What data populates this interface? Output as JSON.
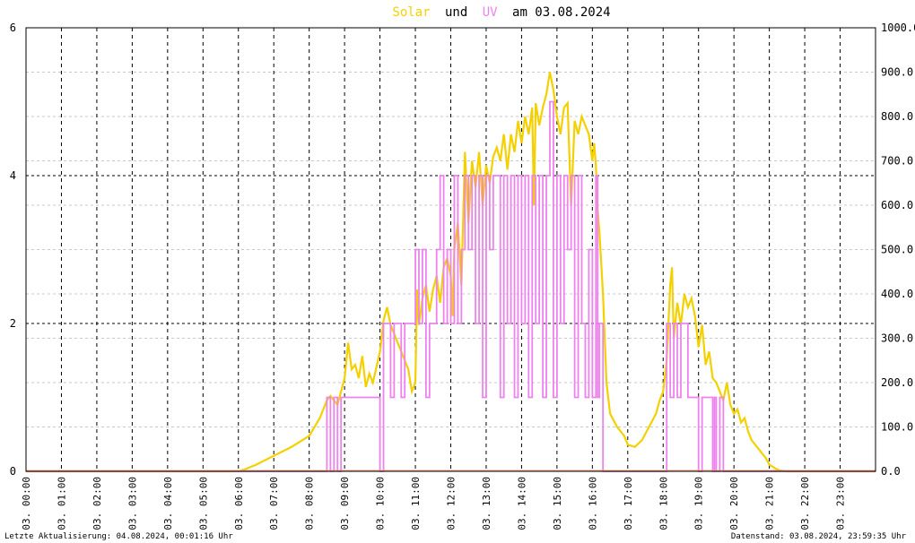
{
  "chart_data": {
    "type": "line",
    "title": {
      "part1": "Solar",
      "part2": "und",
      "part3": "UV",
      "part4": "am 03.08.2024"
    },
    "colors": {
      "solar": "#f5d000",
      "uv": "#ee82ee",
      "baseline": "#f4a080",
      "grid_major": "#000000",
      "grid_minor": "#c8c8c8"
    },
    "left_axis": {
      "min": 0,
      "max": 6,
      "ticks": [
        "0",
        "2",
        "4",
        "6"
      ]
    },
    "right_axis": {
      "min": 0,
      "max": 1000,
      "ticks": [
        "0.0",
        "100.0",
        "200.0",
        "300.0",
        "400.0",
        "500.0",
        "600.0",
        "700.0",
        "800.0",
        "900.0",
        "1000.0"
      ]
    },
    "x_axis": {
      "min_hour": 0,
      "max_hour": 24,
      "ticks": [
        "03. 00:00",
        "03. 01:00",
        "03. 02:00",
        "03. 03:00",
        "03. 04:00",
        "03. 05:00",
        "03. 06:00",
        "03. 07:00",
        "03. 08:00",
        "03. 09:00",
        "03. 10:00",
        "03. 11:00",
        "03. 12:00",
        "03. 13:00",
        "03. 14:00",
        "03. 15:00",
        "03. 16:00",
        "03. 17:00",
        "03. 18:00",
        "03. 19:00",
        "03. 20:00",
        "03. 21:00",
        "03. 22:00",
        "03. 23:00"
      ]
    },
    "series": [
      {
        "key": "solar",
        "axis": "right",
        "points": [
          [
            0,
            0
          ],
          [
            6.0,
            0
          ],
          [
            6.2,
            5
          ],
          [
            6.5,
            15
          ],
          [
            7.0,
            35
          ],
          [
            7.5,
            55
          ],
          [
            8.0,
            80
          ],
          [
            8.3,
            120
          ],
          [
            8.5,
            160
          ],
          [
            8.6,
            170
          ],
          [
            8.8,
            150
          ],
          [
            9.0,
            210
          ],
          [
            9.1,
            290
          ],
          [
            9.2,
            230
          ],
          [
            9.3,
            240
          ],
          [
            9.4,
            210
          ],
          [
            9.5,
            260
          ],
          [
            9.6,
            190
          ],
          [
            9.7,
            220
          ],
          [
            9.8,
            200
          ],
          [
            10.0,
            270
          ],
          [
            10.1,
            340
          ],
          [
            10.2,
            370
          ],
          [
            10.3,
            330
          ],
          [
            10.5,
            290
          ],
          [
            10.7,
            250
          ],
          [
            10.8,
            230
          ],
          [
            10.9,
            180
          ],
          [
            11.0,
            200
          ],
          [
            11.05,
            410
          ],
          [
            11.1,
            330
          ],
          [
            11.2,
            390
          ],
          [
            11.3,
            420
          ],
          [
            11.4,
            360
          ],
          [
            11.5,
            410
          ],
          [
            11.6,
            440
          ],
          [
            11.7,
            380
          ],
          [
            11.8,
            460
          ],
          [
            11.9,
            480
          ],
          [
            12.0,
            440
          ],
          [
            12.05,
            350
          ],
          [
            12.1,
            500
          ],
          [
            12.2,
            560
          ],
          [
            12.3,
            420
          ],
          [
            12.4,
            720
          ],
          [
            12.5,
            560
          ],
          [
            12.6,
            700
          ],
          [
            12.7,
            640
          ],
          [
            12.8,
            720
          ],
          [
            12.9,
            600
          ],
          [
            13.0,
            690
          ],
          [
            13.1,
            650
          ],
          [
            13.2,
            710
          ],
          [
            13.3,
            730
          ],
          [
            13.4,
            700
          ],
          [
            13.5,
            760
          ],
          [
            13.6,
            680
          ],
          [
            13.7,
            760
          ],
          [
            13.8,
            720
          ],
          [
            13.9,
            790
          ],
          [
            14.0,
            740
          ],
          [
            14.1,
            800
          ],
          [
            14.2,
            760
          ],
          [
            14.3,
            820
          ],
          [
            14.35,
            600
          ],
          [
            14.4,
            830
          ],
          [
            14.5,
            780
          ],
          [
            14.6,
            820
          ],
          [
            14.7,
            850
          ],
          [
            14.8,
            900
          ],
          [
            14.9,
            860
          ],
          [
            15.0,
            800
          ],
          [
            15.1,
            760
          ],
          [
            15.2,
            820
          ],
          [
            15.3,
            830
          ],
          [
            15.4,
            600
          ],
          [
            15.5,
            790
          ],
          [
            15.6,
            760
          ],
          [
            15.7,
            800
          ],
          [
            15.8,
            780
          ],
          [
            15.9,
            760
          ],
          [
            16.0,
            700
          ],
          [
            16.05,
            740
          ],
          [
            16.1,
            690
          ],
          [
            16.15,
            590
          ],
          [
            16.2,
            540
          ],
          [
            16.3,
            400
          ],
          [
            16.4,
            200
          ],
          [
            16.5,
            130
          ],
          [
            16.7,
            100
          ],
          [
            16.9,
            80
          ],
          [
            17.0,
            60
          ],
          [
            17.2,
            55
          ],
          [
            17.4,
            70
          ],
          [
            17.6,
            100
          ],
          [
            17.8,
            130
          ],
          [
            17.9,
            160
          ],
          [
            18.0,
            180
          ],
          [
            18.1,
            250
          ],
          [
            18.2,
            420
          ],
          [
            18.25,
            460
          ],
          [
            18.3,
            300
          ],
          [
            18.4,
            380
          ],
          [
            18.5,
            330
          ],
          [
            18.6,
            400
          ],
          [
            18.7,
            370
          ],
          [
            18.8,
            390
          ],
          [
            18.9,
            350
          ],
          [
            19.0,
            280
          ],
          [
            19.1,
            330
          ],
          [
            19.2,
            240
          ],
          [
            19.3,
            270
          ],
          [
            19.4,
            210
          ],
          [
            19.5,
            200
          ],
          [
            19.6,
            180
          ],
          [
            19.7,
            160
          ],
          [
            19.8,
            200
          ],
          [
            19.9,
            150
          ],
          [
            20.0,
            130
          ],
          [
            20.1,
            140
          ],
          [
            20.2,
            110
          ],
          [
            20.3,
            120
          ],
          [
            20.4,
            90
          ],
          [
            20.5,
            70
          ],
          [
            20.7,
            50
          ],
          [
            20.9,
            30
          ],
          [
            21.0,
            15
          ],
          [
            21.2,
            5
          ],
          [
            21.3,
            2
          ],
          [
            21.5,
            0
          ],
          [
            24,
            0
          ]
        ]
      },
      {
        "key": "uv",
        "axis": "left",
        "points": [
          [
            0,
            0
          ],
          [
            8.5,
            0
          ],
          [
            8.5,
            1
          ],
          [
            8.6,
            1
          ],
          [
            8.6,
            0
          ],
          [
            8.7,
            0
          ],
          [
            8.7,
            1
          ],
          [
            8.8,
            1
          ],
          [
            8.8,
            0
          ],
          [
            8.9,
            0
          ],
          [
            8.9,
            1
          ],
          [
            10.0,
            1
          ],
          [
            10.0,
            0
          ],
          [
            10.1,
            0
          ],
          [
            10.1,
            2
          ],
          [
            10.3,
            2
          ],
          [
            10.3,
            1
          ],
          [
            10.4,
            1
          ],
          [
            10.4,
            2
          ],
          [
            10.6,
            2
          ],
          [
            10.6,
            1
          ],
          [
            10.7,
            1
          ],
          [
            10.7,
            2
          ],
          [
            11.0,
            2
          ],
          [
            11.0,
            3
          ],
          [
            11.1,
            3
          ],
          [
            11.1,
            2
          ],
          [
            11.2,
            2
          ],
          [
            11.2,
            3
          ],
          [
            11.3,
            3
          ],
          [
            11.3,
            1
          ],
          [
            11.4,
            1
          ],
          [
            11.4,
            2
          ],
          [
            11.6,
            2
          ],
          [
            11.6,
            3
          ],
          [
            11.7,
            3
          ],
          [
            11.7,
            4
          ],
          [
            11.8,
            4
          ],
          [
            11.8,
            2
          ],
          [
            11.9,
            2
          ],
          [
            11.9,
            3
          ],
          [
            12.0,
            3
          ],
          [
            12.0,
            2
          ],
          [
            12.1,
            2
          ],
          [
            12.1,
            4
          ],
          [
            12.2,
            4
          ],
          [
            12.2,
            2
          ],
          [
            12.3,
            2
          ],
          [
            12.3,
            3
          ],
          [
            12.4,
            3
          ],
          [
            12.4,
            4
          ],
          [
            12.5,
            4
          ],
          [
            12.5,
            3
          ],
          [
            12.6,
            3
          ],
          [
            12.6,
            4
          ],
          [
            12.7,
            4
          ],
          [
            12.7,
            2
          ],
          [
            12.8,
            2
          ],
          [
            12.8,
            4
          ],
          [
            12.9,
            4
          ],
          [
            12.9,
            1
          ],
          [
            13.0,
            1
          ],
          [
            13.0,
            4
          ],
          [
            13.1,
            4
          ],
          [
            13.1,
            3
          ],
          [
            13.2,
            3
          ],
          [
            13.2,
            4
          ],
          [
            13.4,
            4
          ],
          [
            13.4,
            1
          ],
          [
            13.5,
            1
          ],
          [
            13.5,
            4
          ],
          [
            13.6,
            4
          ],
          [
            13.6,
            2
          ],
          [
            13.7,
            2
          ],
          [
            13.7,
            4
          ],
          [
            13.8,
            4
          ],
          [
            13.8,
            1
          ],
          [
            13.9,
            1
          ],
          [
            13.9,
            4
          ],
          [
            14.0,
            4
          ],
          [
            14.0,
            2
          ],
          [
            14.1,
            2
          ],
          [
            14.1,
            4
          ],
          [
            14.2,
            4
          ],
          [
            14.2,
            1
          ],
          [
            14.3,
            1
          ],
          [
            14.3,
            4
          ],
          [
            14.4,
            4
          ],
          [
            14.4,
            2
          ],
          [
            14.5,
            2
          ],
          [
            14.5,
            4
          ],
          [
            14.6,
            4
          ],
          [
            14.6,
            1
          ],
          [
            14.7,
            1
          ],
          [
            14.7,
            4
          ],
          [
            14.8,
            4
          ],
          [
            14.8,
            5
          ],
          [
            14.9,
            5
          ],
          [
            14.9,
            1
          ],
          [
            15.0,
            1
          ],
          [
            15.0,
            4
          ],
          [
            15.1,
            4
          ],
          [
            15.1,
            2
          ],
          [
            15.2,
            2
          ],
          [
            15.2,
            4
          ],
          [
            15.3,
            4
          ],
          [
            15.3,
            3
          ],
          [
            15.4,
            3
          ],
          [
            15.4,
            4
          ],
          [
            15.5,
            4
          ],
          [
            15.5,
            1
          ],
          [
            15.6,
            1
          ],
          [
            15.6,
            4
          ],
          [
            15.7,
            4
          ],
          [
            15.7,
            2
          ],
          [
            15.8,
            2
          ],
          [
            15.8,
            1
          ],
          [
            15.9,
            1
          ],
          [
            15.9,
            3
          ],
          [
            16.0,
            3
          ],
          [
            16.0,
            1
          ],
          [
            16.1,
            1
          ],
          [
            16.1,
            4
          ],
          [
            16.15,
            4
          ],
          [
            16.15,
            1
          ],
          [
            16.2,
            1
          ],
          [
            16.2,
            2
          ],
          [
            16.3,
            2
          ],
          [
            16.3,
            0
          ],
          [
            18.1,
            0
          ],
          [
            18.1,
            2
          ],
          [
            18.2,
            2
          ],
          [
            18.2,
            1
          ],
          [
            18.3,
            1
          ],
          [
            18.3,
            2
          ],
          [
            18.4,
            2
          ],
          [
            18.4,
            1
          ],
          [
            18.5,
            1
          ],
          [
            18.5,
            2
          ],
          [
            18.7,
            2
          ],
          [
            18.7,
            1
          ],
          [
            19.0,
            1
          ],
          [
            19.0,
            0
          ],
          [
            19.1,
            0
          ],
          [
            19.1,
            1
          ],
          [
            19.4,
            1
          ],
          [
            19.4,
            0
          ],
          [
            19.45,
            0
          ],
          [
            19.45,
            1
          ],
          [
            19.5,
            1
          ],
          [
            19.5,
            0
          ],
          [
            19.6,
            0
          ],
          [
            19.6,
            1
          ],
          [
            19.7,
            1
          ],
          [
            19.7,
            0
          ],
          [
            24,
            0
          ]
        ]
      }
    ],
    "footer_left": "Letzte Aktualisierung: 04.08.2024, 00:01:16 Uhr",
    "footer_right": "Datenstand: 03.08.2024, 23:59:35 Uhr"
  }
}
